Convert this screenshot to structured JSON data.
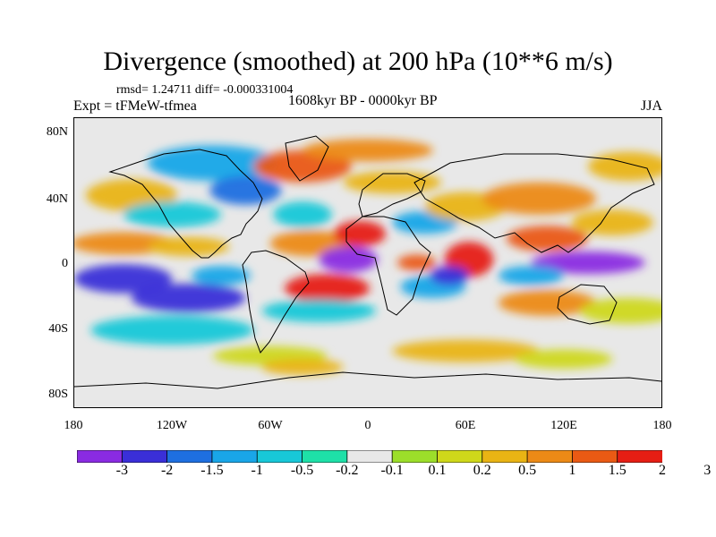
{
  "title": "Divergence (smoothed) at 200 hPa (10**6 m/s)",
  "stats_line": "rmsd= 1.24711  diff= -0.000331004",
  "experiment_label": "Expt = tFMeW-tfmea",
  "period_label": "1608kyr BP - 0000kyr BP",
  "season_label": "JJA",
  "map": {
    "lat_ticks": [
      "80N",
      "40N",
      "0",
      "40S",
      "80S"
    ],
    "lon_ticks": [
      "180",
      "120W",
      "60W",
      "0",
      "60E",
      "120E",
      "180"
    ]
  },
  "colorbar": {
    "colors": [
      "#8a2be2",
      "#3a2fd8",
      "#1e6fe0",
      "#19a6e8",
      "#18c8d8",
      "#1ee0a8",
      "#e8e8e8",
      "#9cde2a",
      "#cfd81a",
      "#e9b414",
      "#ec8a16",
      "#ea5a14",
      "#e61e14"
    ],
    "labels": [
      "-3",
      "-2",
      "-1.5",
      "-1",
      "-0.5",
      "-0.2",
      "-0.1",
      "0.1",
      "0.2",
      "0.5",
      "1",
      "1.5",
      "2",
      "3"
    ]
  },
  "field_blobs": [
    {
      "lon": -145,
      "lat": 42,
      "rx": 28,
      "ry": 10,
      "level": 9
    },
    {
      "lon": -95,
      "lat": 62,
      "rx": 40,
      "ry": 11,
      "level": 3
    },
    {
      "lon": -75,
      "lat": 45,
      "rx": 22,
      "ry": 9,
      "level": 2
    },
    {
      "lon": -120,
      "lat": 30,
      "rx": 30,
      "ry": 8,
      "level": 4
    },
    {
      "lon": -150,
      "lat": 12,
      "rx": 32,
      "ry": 7,
      "level": 10
    },
    {
      "lon": -110,
      "lat": 10,
      "rx": 25,
      "ry": 6,
      "level": 9
    },
    {
      "lon": -150,
      "lat": -10,
      "rx": 30,
      "ry": 9,
      "level": 1
    },
    {
      "lon": -110,
      "lat": -22,
      "rx": 35,
      "ry": 9,
      "level": 1
    },
    {
      "lon": -90,
      "lat": -8,
      "rx": 18,
      "ry": 6,
      "level": 3
    },
    {
      "lon": -120,
      "lat": -42,
      "rx": 50,
      "ry": 9,
      "level": 4
    },
    {
      "lon": -40,
      "lat": 60,
      "rx": 30,
      "ry": 10,
      "level": 11
    },
    {
      "lon": -40,
      "lat": 30,
      "rx": 18,
      "ry": 8,
      "level": 4
    },
    {
      "lon": -35,
      "lat": 12,
      "rx": 25,
      "ry": 8,
      "level": 10
    },
    {
      "lon": -12,
      "lat": 2,
      "rx": 18,
      "ry": 8,
      "level": 0
    },
    {
      "lon": -25,
      "lat": -16,
      "rx": 26,
      "ry": 9,
      "level": 12
    },
    {
      "lon": -30,
      "lat": -30,
      "rx": 35,
      "ry": 7,
      "level": 4
    },
    {
      "lon": 0,
      "lat": 70,
      "rx": 40,
      "ry": 7,
      "level": 10
    },
    {
      "lon": 15,
      "lat": 50,
      "rx": 30,
      "ry": 7,
      "level": 9
    },
    {
      "lon": -5,
      "lat": 18,
      "rx": 16,
      "ry": 8,
      "level": 12
    },
    {
      "lon": 30,
      "lat": 0,
      "rx": 12,
      "ry": 5,
      "level": 11
    },
    {
      "lon": 40,
      "lat": -15,
      "rx": 20,
      "ry": 7,
      "level": 3
    },
    {
      "lon": 35,
      "lat": 25,
      "rx": 20,
      "ry": 7,
      "level": 3
    },
    {
      "lon": 60,
      "lat": 35,
      "rx": 25,
      "ry": 9,
      "level": 9
    },
    {
      "lon": 62,
      "lat": 2,
      "rx": 15,
      "ry": 11,
      "level": 12
    },
    {
      "lon": 50,
      "lat": -8,
      "rx": 12,
      "ry": 6,
      "level": 1
    },
    {
      "lon": 105,
      "lat": 40,
      "rx": 35,
      "ry": 10,
      "level": 10
    },
    {
      "lon": 110,
      "lat": 15,
      "rx": 25,
      "ry": 8,
      "level": 11
    },
    {
      "lon": 135,
      "lat": 0,
      "rx": 35,
      "ry": 7,
      "level": 0
    },
    {
      "lon": 100,
      "lat": -8,
      "rx": 20,
      "ry": 6,
      "level": 3
    },
    {
      "lon": 110,
      "lat": -25,
      "rx": 30,
      "ry": 8,
      "level": 10
    },
    {
      "lon": 160,
      "lat": 60,
      "rx": 25,
      "ry": 9,
      "level": 9
    },
    {
      "lon": 150,
      "lat": 25,
      "rx": 25,
      "ry": 8,
      "level": 9
    },
    {
      "lon": 160,
      "lat": -30,
      "rx": 30,
      "ry": 8,
      "level": 8
    },
    {
      "lon": 60,
      "lat": -55,
      "rx": 45,
      "ry": 7,
      "level": 9
    },
    {
      "lon": -60,
      "lat": -58,
      "rx": 35,
      "ry": 6,
      "level": 8
    },
    {
      "lon": -40,
      "lat": -65,
      "rx": 25,
      "ry": 5,
      "level": 9
    },
    {
      "lon": 120,
      "lat": -60,
      "rx": 30,
      "ry": 6,
      "level": 8
    }
  ]
}
